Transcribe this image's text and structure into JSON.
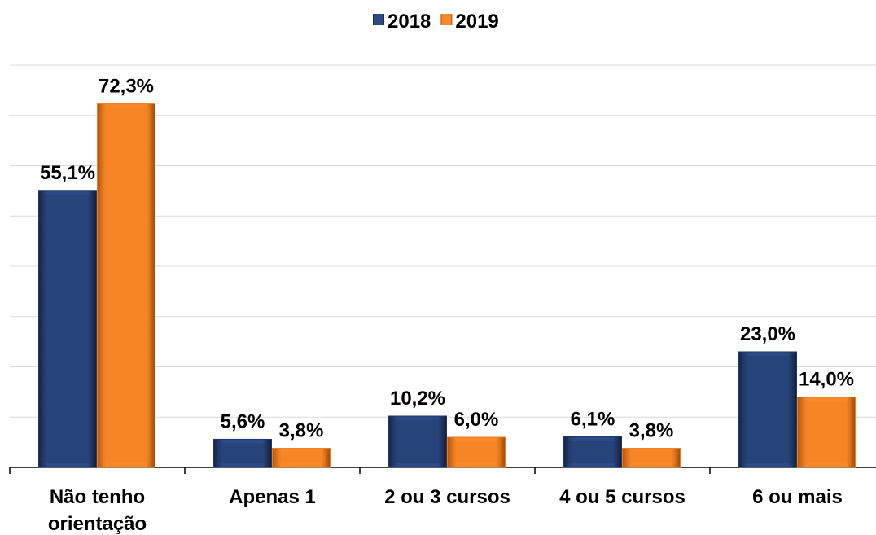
{
  "chart_data": {
    "type": "bar",
    "categories": [
      "Não tenho orientação",
      "Apenas 1",
      "2 ou 3 cursos",
      "4 ou 5 cursos",
      "6 ou mais"
    ],
    "series": [
      {
        "name": "2018",
        "color": "#1f3868",
        "values": [
          55.1,
          5.6,
          10.2,
          6.1,
          23.0
        ],
        "value_labels": [
          "55,1%",
          "5,6%",
          "10,2%",
          "6,1%",
          "23,0%"
        ]
      },
      {
        "name": "2019",
        "color": "#f07e1c",
        "values": [
          72.3,
          3.8,
          6.0,
          3.8,
          14.0
        ],
        "value_labels": [
          "72,3%",
          "3,8%",
          "6,0%",
          "3,8%",
          "14,0%"
        ]
      }
    ],
    "ylim": [
      0,
      80
    ],
    "yticks": [
      0,
      10,
      20,
      30,
      40,
      50,
      60,
      70,
      80
    ],
    "grid": true,
    "legend": "top"
  }
}
